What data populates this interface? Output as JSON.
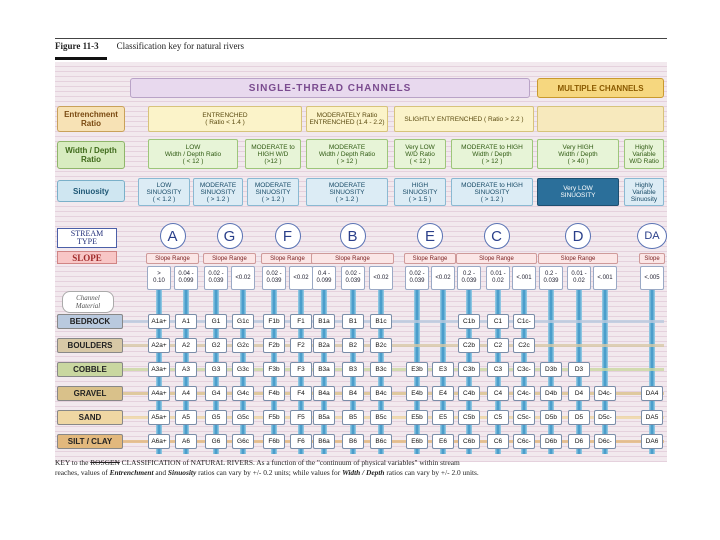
{
  "figure": {
    "label": "Figure 11-3",
    "caption": "Classification key for natural rivers"
  },
  "headers": {
    "single": "SINGLE-THREAD  CHANNELS",
    "multiple": "MULTIPLE CHANNELS"
  },
  "row_labels": {
    "entrenchment": [
      "Entrenchment",
      "Ratio"
    ],
    "width_depth": [
      "Width / Depth",
      "Ratio"
    ],
    "sinuosity": "Sinuosity",
    "stream_type": [
      "STREAM",
      "TYPE"
    ],
    "slope": "SLOPE",
    "channel_material": [
      "Channel",
      "Material"
    ]
  },
  "entrenchment_boxes": [
    {
      "lines": [
        "ENTRENCHED",
        "( Ratio < 1.4 )"
      ]
    },
    {
      "lines": [
        "MODERATELY  Ratio",
        "ENTRENCHED (1.4 - 2.2)"
      ]
    },
    {
      "lines": [
        "SLIGHTLY  ENTRENCHED ( Ratio > 2.2 )"
      ]
    }
  ],
  "width_depth_boxes": [
    {
      "lines": [
        "LOW",
        "Width / Depth Ratio",
        "( < 12 )"
      ]
    },
    {
      "lines": [
        "MODERATE to",
        "HIGH  W/D",
        "(>12 )"
      ]
    },
    {
      "lines": [
        "MODERATE",
        "Width / Depth Ratio",
        "( > 12 )"
      ]
    },
    {
      "lines": [
        "Very LOW",
        "W/D Ratio",
        "( < 12 )"
      ]
    },
    {
      "lines": [
        "MODERATE to HIGH",
        "Width / Depth",
        "( > 12 )"
      ]
    },
    {
      "lines": [
        "Very HIGH",
        "Width / Depth",
        "( > 40 )"
      ]
    },
    {
      "lines": [
        "Highly",
        "Variable",
        "W/D Ratio"
      ]
    }
  ],
  "sinuosity_boxes": [
    {
      "lines": [
        "LOW",
        "SINUOSITY",
        "( < 1.2 )"
      ]
    },
    {
      "lines": [
        "MODERATE",
        "SINUOSITY",
        "( > 1.2 )"
      ]
    },
    {
      "lines": [
        "MODERATE",
        "SINUOSITY",
        "( > 1.2 )"
      ]
    },
    {
      "lines": [
        "MODERATE",
        "SINUOSITY",
        "( > 1.2 )"
      ]
    },
    {
      "lines": [
        "HIGH",
        "SINUOSITY",
        "( > 1.5 )"
      ]
    },
    {
      "lines": [
        "MODERATE to HIGH",
        "SINUOSITY",
        "( > 1.2 )"
      ]
    },
    {
      "lines": [
        "Very LOW",
        "SINUOSITY"
      ]
    },
    {
      "lines": [
        "Highly",
        "Variable",
        "Sinuosity"
      ]
    }
  ],
  "stream_types": [
    "A",
    "G",
    "F",
    "B",
    "E",
    "C",
    "D",
    "DA"
  ],
  "slope_range_label": "Slope Range",
  "slope_label_da": "Slope",
  "slope_values": [
    [
      ">",
      "0.10"
    ],
    [
      "0.04 -",
      "0.099"
    ],
    [
      "0.02 -",
      "0.039"
    ],
    [
      "<0.02"
    ],
    [
      "0.02 -",
      "0.039"
    ],
    [
      "<0.02"
    ],
    [
      "0.4 -",
      "0.099"
    ],
    [
      "0.02 -",
      "0.039"
    ],
    [
      "<0.02"
    ],
    [
      "0.02 -",
      "0.039"
    ],
    [
      "<0.02"
    ],
    [
      "0.2 -",
      "0.039"
    ],
    [
      "0.01 -",
      "0.02"
    ],
    [
      "<.001"
    ],
    [
      "0.2 -",
      "0.039"
    ],
    [
      "0.01 -",
      "0.02"
    ],
    [
      "<.001"
    ],
    [
      "<.005"
    ]
  ],
  "materials": [
    "BEDROCK",
    "BOULDERS",
    "COBBLE",
    "GRAVEL",
    "SAND",
    "SILT / CLAY"
  ],
  "material_colors": [
    "#b9c9de",
    "#d7c8a6",
    "#c9d7a0",
    "#d9c18a",
    "#efd7a3",
    "#e2b87d"
  ],
  "cells": [
    [
      "A1a+",
      "A1",
      "G1",
      "G1c",
      "F1b",
      "F1",
      "B1a",
      "B1",
      "B1c",
      "",
      "",
      "C1b",
      "C1",
      "C1c-",
      "",
      "",
      "",
      ""
    ],
    [
      "A2a+",
      "A2",
      "G2",
      "G2c",
      "F2b",
      "F2",
      "B2a",
      "B2",
      "B2c",
      "",
      "",
      "C2b",
      "C2",
      "C2c",
      "",
      "",
      "",
      ""
    ],
    [
      "A3a+",
      "A3",
      "G3",
      "G3c",
      "F3b",
      "F3",
      "B3a",
      "B3",
      "B3c",
      "E3b",
      "E3",
      "C3b",
      "C3",
      "C3c-",
      "D3b",
      "D3",
      "",
      ""
    ],
    [
      "A4a+",
      "A4",
      "G4",
      "G4c",
      "F4b",
      "F4",
      "B4a",
      "B4",
      "B4c",
      "E4b",
      "E4",
      "C4b",
      "C4",
      "C4c-",
      "D4b",
      "D4",
      "D4c-",
      "DA4"
    ],
    [
      "A5a+",
      "A5",
      "G5",
      "G5c",
      "F5b",
      "F5",
      "B5a",
      "B5",
      "B5c",
      "E5b",
      "E5",
      "C5b",
      "C5",
      "C5c-",
      "D5b",
      "D5",
      "D5c-",
      "DA5"
    ],
    [
      "A6a+",
      "A6",
      "G6",
      "G6c",
      "F6b",
      "F6",
      "B6a",
      "B6",
      "B6c",
      "E6b",
      "E6",
      "C6b",
      "C6",
      "C6c-",
      "D6b",
      "D6",
      "D6c-",
      "DA6"
    ]
  ],
  "key_text": {
    "line1_a": "KEY to the ",
    "line1_rosgen": "ROSGEN",
    "line1_b": " CLASSIFICATION of NATURAL RIVERS.",
    "line1_c": "   As a function of the  \"continuum of physical variables\"  within stream",
    "line2_a": "reaches, values of ",
    "line2_ent": "Entrenchment",
    "line2_and": " and ",
    "line2_sin": "Sinuosity",
    "line2_b": " ratios can vary by +/- 0.2 units; while values for ",
    "line2_wd": "Width / Depth",
    "line2_c": " ratios can vary by +/- 2.0 units."
  },
  "colors": {
    "panel": "#f2e9ee",
    "header_single": "#e8d9ee",
    "header_multi": "#f6d77f",
    "pipe": "#3a94c6"
  }
}
